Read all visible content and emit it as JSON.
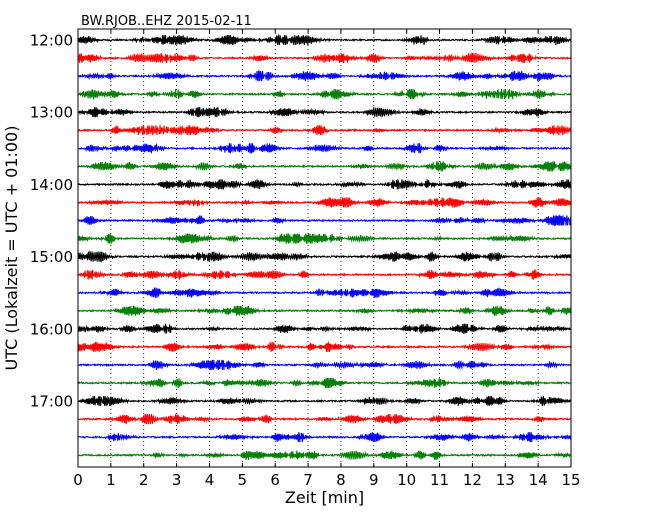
{
  "chart_data": {
    "type": "line",
    "title": "BW.RJOB..EHZ 2015-02-11",
    "xlabel": "Zeit  [min]",
    "ylabel": "UTC (Lokalzeit = UTC + 01:00)",
    "xlim": [
      0,
      15
    ],
    "x_ticks": [
      "0",
      "1",
      "2",
      "3",
      "4",
      "5",
      "6",
      "7",
      "8",
      "9",
      "10",
      "11",
      "12",
      "13",
      "14",
      "15"
    ],
    "y_tick_labels": [
      "12:00",
      "13:00",
      "14:00",
      "15:00",
      "16:00",
      "17:00"
    ],
    "traces_per_hour": 4,
    "trace_minutes": 15,
    "grid": "vertical dotted at each minute",
    "colors": [
      "#000000",
      "#ff0000",
      "#0000ff",
      "#008000"
    ],
    "rows": [
      {
        "start": "12:00",
        "color": "#000000"
      },
      {
        "start": "12:15",
        "color": "#ff0000"
      },
      {
        "start": "12:30",
        "color": "#0000ff"
      },
      {
        "start": "12:45",
        "color": "#008000"
      },
      {
        "start": "13:00",
        "color": "#000000"
      },
      {
        "start": "13:15",
        "color": "#ff0000"
      },
      {
        "start": "13:30",
        "color": "#0000ff"
      },
      {
        "start": "13:45",
        "color": "#008000"
      },
      {
        "start": "14:00",
        "color": "#000000"
      },
      {
        "start": "14:15",
        "color": "#ff0000"
      },
      {
        "start": "14:30",
        "color": "#0000ff"
      },
      {
        "start": "14:45",
        "color": "#008000"
      },
      {
        "start": "15:00",
        "color": "#000000"
      },
      {
        "start": "15:15",
        "color": "#ff0000"
      },
      {
        "start": "15:30",
        "color": "#0000ff"
      },
      {
        "start": "15:45",
        "color": "#008000"
      },
      {
        "start": "16:00",
        "color": "#000000"
      },
      {
        "start": "16:15",
        "color": "#ff0000"
      },
      {
        "start": "16:30",
        "color": "#0000ff"
      },
      {
        "start": "16:45",
        "color": "#008000"
      },
      {
        "start": "17:00",
        "color": "#000000"
      },
      {
        "start": "17:15",
        "color": "#ff0000"
      },
      {
        "start": "17:30",
        "color": "#0000ff"
      },
      {
        "start": "17:45",
        "color": "#008000"
      }
    ]
  }
}
